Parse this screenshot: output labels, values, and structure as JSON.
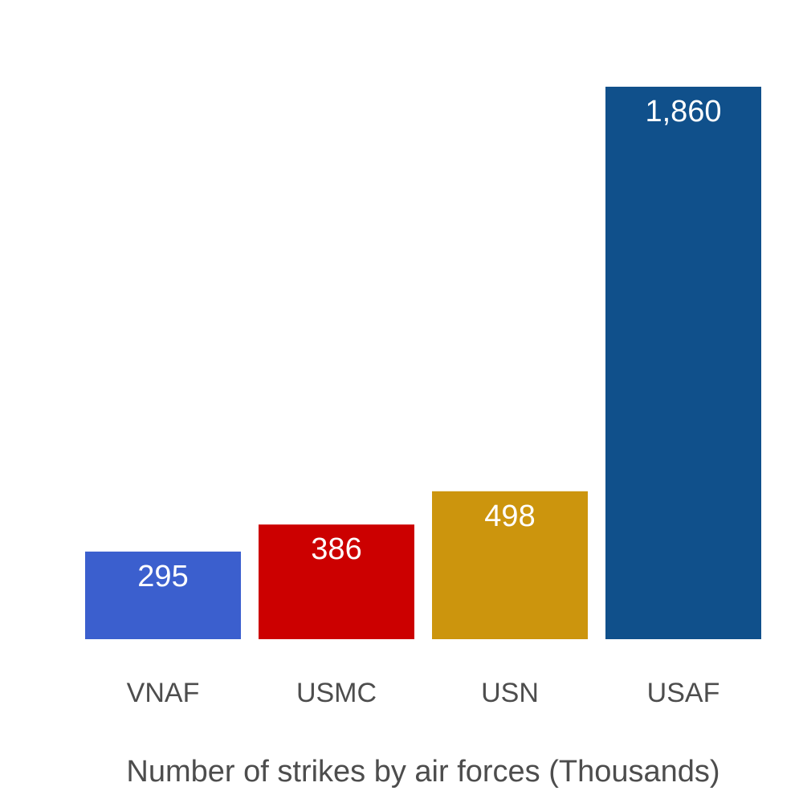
{
  "chart_data": {
    "type": "bar",
    "categories": [
      "VNAF",
      "USMC",
      "USN",
      "USAF"
    ],
    "values": [
      295,
      386,
      498,
      1860
    ],
    "value_labels": [
      "295",
      "386",
      "498",
      "1,860"
    ],
    "colors": [
      "#3b5fce",
      "#cc0000",
      "#cc950d",
      "#10508b"
    ],
    "title": "",
    "xlabel": "Number of strikes by air forces (Thousands)",
    "ylabel": "",
    "ylim": [
      0,
      2000
    ],
    "grid": false,
    "legend": "none"
  }
}
